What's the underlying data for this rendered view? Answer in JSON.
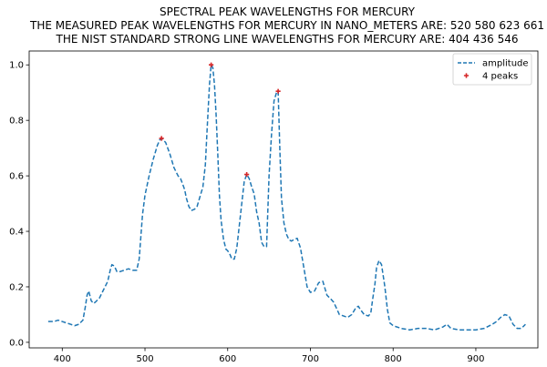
{
  "chart_data": {
    "type": "line",
    "title_lines": [
      "SPECTRAL PEAK WAVELENGTHS FOR MERCURY",
      "THE MEASURED PEAK WAVELENGTHS FOR MERCURY IN NANO_METERS ARE: 520 580 623 661",
      "THE NIST STANDARD STRONG LINE WAVELENGTHS FOR MERCURY ARE: 404 436 546"
    ],
    "xlabel": "",
    "ylabel": "",
    "xlim": [
      360,
      975
    ],
    "ylim": [
      -0.02,
      1.05
    ],
    "xticks": [
      400,
      500,
      600,
      700,
      800,
      900
    ],
    "yticks": [
      0.0,
      0.2,
      0.4,
      0.6,
      0.8,
      1.0
    ],
    "grid": false,
    "legend_placement": "top-right",
    "series": [
      {
        "name": "amplitude",
        "style": "dashed",
        "color": "#1f77b4",
        "x": [
          383,
          390,
          395,
          400,
          405,
          410,
          415,
          420,
          425,
          428,
          430,
          432,
          435,
          438,
          440,
          445,
          450,
          455,
          458,
          460,
          463,
          466,
          470,
          475,
          480,
          485,
          490,
          493,
          495,
          497,
          500,
          505,
          510,
          515,
          518,
          520,
          522,
          525,
          530,
          535,
          540,
          543,
          545,
          548,
          550,
          553,
          556,
          560,
          563,
          566,
          570,
          573,
          575,
          578,
          580,
          582,
          584,
          586,
          588,
          590,
          592,
          595,
          598,
          600,
          603,
          605,
          608,
          611,
          614,
          617,
          620,
          623,
          626,
          629,
          632,
          635,
          638,
          641,
          644,
          647,
          650,
          653,
          656,
          659,
          661,
          663,
          665,
          668,
          671,
          674,
          677,
          680,
          684,
          688,
          692,
          696,
          700,
          705,
          710,
          715,
          720,
          725,
          728,
          732,
          735,
          740,
          745,
          750,
          755,
          758,
          760,
          765,
          770,
          773,
          775,
          778,
          780,
          783,
          786,
          790,
          793,
          796,
          800,
          810,
          820,
          830,
          840,
          850,
          860,
          865,
          870,
          880,
          890,
          900,
          910,
          920,
          925,
          930,
          935,
          940,
          945,
          950,
          955,
          960
        ],
        "y": [
          0.075,
          0.075,
          0.08,
          0.075,
          0.07,
          0.065,
          0.06,
          0.065,
          0.08,
          0.13,
          0.17,
          0.185,
          0.15,
          0.14,
          0.145,
          0.16,
          0.19,
          0.22,
          0.26,
          0.28,
          0.275,
          0.255,
          0.255,
          0.26,
          0.265,
          0.26,
          0.26,
          0.3,
          0.38,
          0.46,
          0.53,
          0.6,
          0.66,
          0.71,
          0.73,
          0.735,
          0.73,
          0.72,
          0.68,
          0.63,
          0.6,
          0.59,
          0.575,
          0.55,
          0.52,
          0.49,
          0.475,
          0.48,
          0.49,
          0.52,
          0.56,
          0.64,
          0.76,
          0.93,
          1.0,
          0.99,
          0.93,
          0.82,
          0.68,
          0.53,
          0.44,
          0.37,
          0.335,
          0.33,
          0.315,
          0.3,
          0.3,
          0.34,
          0.42,
          0.5,
          0.58,
          0.605,
          0.59,
          0.56,
          0.535,
          0.47,
          0.43,
          0.36,
          0.345,
          0.345,
          0.6,
          0.75,
          0.87,
          0.9,
          0.905,
          0.7,
          0.52,
          0.43,
          0.39,
          0.37,
          0.365,
          0.37,
          0.375,
          0.34,
          0.27,
          0.2,
          0.18,
          0.185,
          0.215,
          0.22,
          0.17,
          0.155,
          0.145,
          0.12,
          0.1,
          0.095,
          0.09,
          0.1,
          0.125,
          0.13,
          0.12,
          0.1,
          0.095,
          0.105,
          0.15,
          0.21,
          0.27,
          0.295,
          0.28,
          0.2,
          0.12,
          0.07,
          0.06,
          0.05,
          0.045,
          0.05,
          0.05,
          0.045,
          0.055,
          0.065,
          0.05,
          0.045,
          0.045,
          0.045,
          0.05,
          0.065,
          0.075,
          0.09,
          0.1,
          0.095,
          0.065,
          0.05,
          0.05,
          0.065
        ]
      },
      {
        "name": "4 peaks",
        "style": "markers",
        "color": "#d62728",
        "x": [
          520,
          580,
          623,
          661
        ],
        "y": [
          0.735,
          1.0,
          0.605,
          0.905
        ]
      }
    ]
  }
}
